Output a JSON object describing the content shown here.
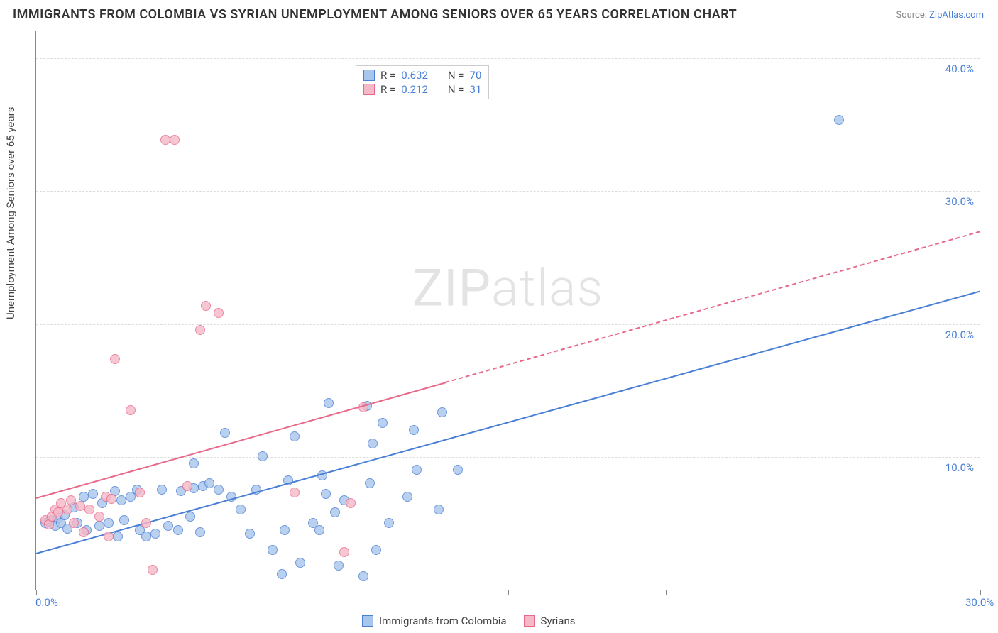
{
  "title": "IMMIGRANTS FROM COLOMBIA VS SYRIAN UNEMPLOYMENT AMONG SENIORS OVER 65 YEARS CORRELATION CHART",
  "source_prefix": "Source: ",
  "source_link": "ZipAtlas.com",
  "ylabel": "Unemployment Among Seniors over 65 years",
  "watermark_bold": "ZIP",
  "watermark_thin": "atlas",
  "chart": {
    "type": "scatter",
    "xlim": [
      0,
      30
    ],
    "ylim": [
      0,
      42
    ],
    "xtick_positions": [
      0,
      5,
      10,
      15,
      20,
      25,
      30
    ],
    "xtick_labels": {
      "0": "0.0%",
      "30": "30.0%"
    },
    "ytick_positions": [
      10,
      20,
      30,
      40
    ],
    "ytick_labels": {
      "10": "10.0%",
      "20": "20.0%",
      "30": "30.0%",
      "40": "40.0%"
    },
    "grid_color": "#dddddd",
    "background_color": "#ffffff",
    "axis_color": "#888888",
    "marker_radius": 7,
    "marker_stroke_width": 1.5,
    "marker_fill_opacity": 0.35
  },
  "series": [
    {
      "key": "colombia",
      "label": "Immigrants from Colombia",
      "color_stroke": "#4a7fd6",
      "color_fill": "#a8c5ec",
      "r_value": "0.632",
      "n_value": "70",
      "trend": {
        "x1": 0,
        "y1": 2.8,
        "x2": 30,
        "y2": 22.5,
        "width": 2.5,
        "dashed_from_x": null
      },
      "points": [
        [
          0.3,
          5.0
        ],
        [
          0.4,
          5.1
        ],
        [
          0.5,
          5.2
        ],
        [
          0.6,
          4.8
        ],
        [
          0.7,
          5.4
        ],
        [
          0.8,
          5.0
        ],
        [
          0.9,
          5.6
        ],
        [
          1.0,
          4.6
        ],
        [
          1.2,
          6.2
        ],
        [
          1.3,
          5.0
        ],
        [
          1.5,
          7.0
        ],
        [
          1.6,
          4.5
        ],
        [
          1.8,
          7.2
        ],
        [
          2.0,
          4.8
        ],
        [
          2.1,
          6.5
        ],
        [
          2.3,
          5.0
        ],
        [
          2.5,
          7.4
        ],
        [
          2.6,
          4.0
        ],
        [
          2.7,
          6.7
        ],
        [
          2.8,
          5.2
        ],
        [
          3.0,
          7.0
        ],
        [
          3.2,
          7.5
        ],
        [
          3.3,
          4.5
        ],
        [
          3.5,
          4.0
        ],
        [
          3.8,
          4.2
        ],
        [
          4.0,
          7.5
        ],
        [
          4.2,
          4.8
        ],
        [
          4.5,
          4.5
        ],
        [
          4.6,
          7.4
        ],
        [
          4.9,
          5.5
        ],
        [
          5.0,
          9.5
        ],
        [
          5.0,
          7.6
        ],
        [
          5.2,
          4.3
        ],
        [
          5.3,
          7.8
        ],
        [
          5.5,
          8.0
        ],
        [
          5.8,
          7.5
        ],
        [
          6.0,
          11.8
        ],
        [
          6.2,
          7.0
        ],
        [
          6.5,
          6.0
        ],
        [
          6.8,
          4.2
        ],
        [
          7.0,
          7.5
        ],
        [
          7.2,
          10.0
        ],
        [
          7.5,
          3.0
        ],
        [
          7.8,
          1.2
        ],
        [
          7.9,
          4.5
        ],
        [
          8.0,
          8.2
        ],
        [
          8.2,
          11.5
        ],
        [
          8.4,
          2.0
        ],
        [
          8.8,
          5.0
        ],
        [
          9.0,
          4.5
        ],
        [
          9.1,
          8.6
        ],
        [
          9.2,
          7.2
        ],
        [
          9.3,
          14.0
        ],
        [
          9.5,
          5.8
        ],
        [
          9.6,
          1.8
        ],
        [
          9.8,
          6.7
        ],
        [
          10.4,
          1.0
        ],
        [
          10.5,
          13.8
        ],
        [
          10.6,
          8.0
        ],
        [
          10.7,
          11.0
        ],
        [
          10.8,
          3.0
        ],
        [
          11.0,
          12.5
        ],
        [
          11.2,
          5.0
        ],
        [
          11.8,
          7.0
        ],
        [
          12.0,
          12.0
        ],
        [
          12.1,
          9.0
        ],
        [
          12.8,
          6.0
        ],
        [
          12.9,
          13.3
        ],
        [
          13.4,
          9.0
        ],
        [
          25.5,
          35.3
        ]
      ]
    },
    {
      "key": "syrians",
      "label": "Syrians",
      "color_stroke": "#e86a8a",
      "color_fill": "#f5b8c7",
      "r_value": "0.212",
      "n_value": "31",
      "trend": {
        "x1": 0,
        "y1": 7.0,
        "x2": 30,
        "y2": 27.0,
        "width": 2,
        "dashed_from_x": 13
      },
      "points": [
        [
          0.3,
          5.2
        ],
        [
          0.4,
          4.9
        ],
        [
          0.5,
          5.5
        ],
        [
          0.6,
          6.0
        ],
        [
          0.7,
          5.8
        ],
        [
          0.8,
          6.5
        ],
        [
          1.0,
          6.0
        ],
        [
          1.1,
          6.7
        ],
        [
          1.2,
          5.0
        ],
        [
          1.4,
          6.3
        ],
        [
          1.5,
          4.3
        ],
        [
          1.7,
          6.0
        ],
        [
          2.0,
          5.5
        ],
        [
          2.2,
          7.0
        ],
        [
          2.3,
          4.0
        ],
        [
          2.4,
          6.8
        ],
        [
          2.5,
          17.3
        ],
        [
          3.0,
          13.5
        ],
        [
          3.3,
          7.3
        ],
        [
          3.5,
          5.0
        ],
        [
          3.7,
          1.5
        ],
        [
          4.1,
          33.8
        ],
        [
          4.4,
          33.8
        ],
        [
          4.8,
          7.8
        ],
        [
          5.2,
          19.5
        ],
        [
          5.4,
          21.3
        ],
        [
          5.8,
          20.8
        ],
        [
          8.2,
          7.3
        ],
        [
          9.8,
          2.8
        ],
        [
          10.0,
          6.5
        ],
        [
          10.4,
          13.7
        ]
      ]
    }
  ],
  "legend_r_label": "R =",
  "legend_n_label": "N ="
}
